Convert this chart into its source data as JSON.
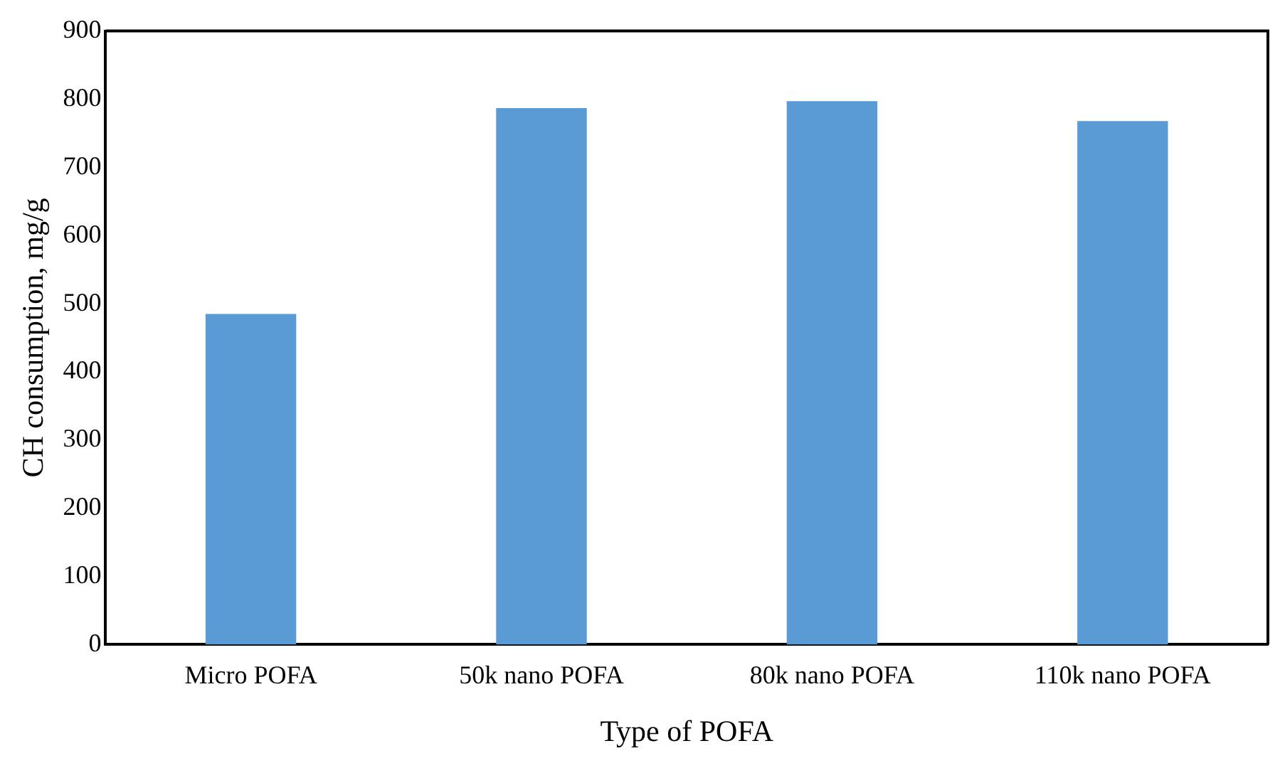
{
  "chart_data": {
    "type": "bar",
    "xlabel": "Type of POFA",
    "ylabel": "CH consumption, mg/g",
    "categories": [
      "Micro POFA",
      "50k nano POFA",
      "80k nano POFA",
      "110k nano POFA"
    ],
    "values": [
      485,
      787,
      797,
      768
    ],
    "color": "#5b9bd5",
    "ylim": [
      0,
      900
    ],
    "yticks": [
      0,
      100,
      200,
      300,
      400,
      500,
      600,
      700,
      800,
      900
    ],
    "grid": false,
    "legend": false
  }
}
